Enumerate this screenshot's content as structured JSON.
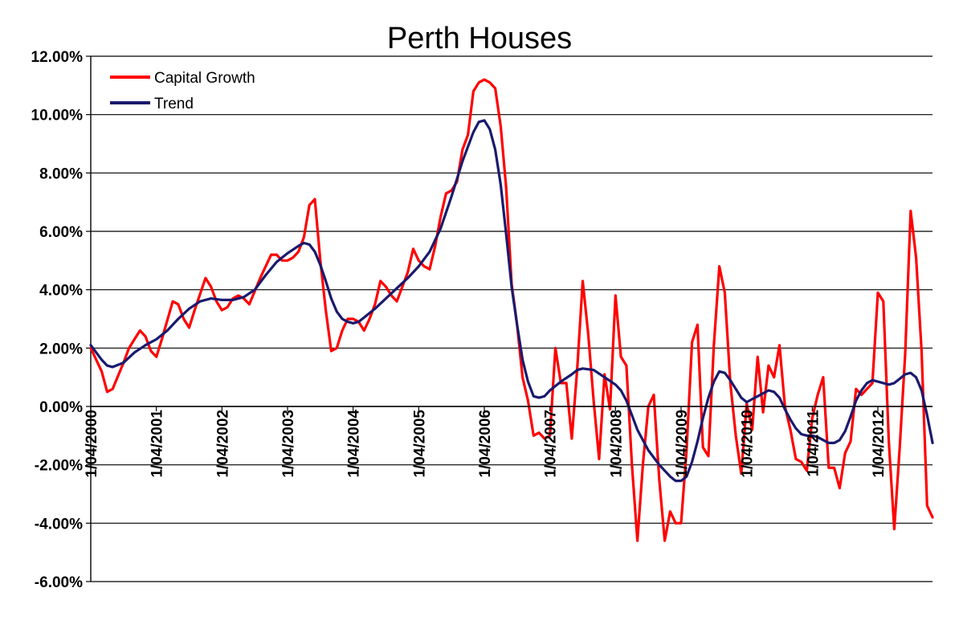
{
  "chart_data": {
    "type": "line",
    "title": "Perth Houses",
    "xlabel": "",
    "ylabel": "",
    "ylim": [
      -6,
      12
    ],
    "y_ticks": [
      "12.00%",
      "10.00%",
      "8.00%",
      "6.00%",
      "4.00%",
      "2.00%",
      "0.00%",
      "-2.00%",
      "-4.00%",
      "-6.00%"
    ],
    "y_tick_values": [
      12,
      10,
      8,
      6,
      4,
      2,
      0,
      -2,
      -4,
      -6
    ],
    "x_ticks": [
      "1/04/2000",
      "1/04/2001",
      "1/04/2002",
      "1/04/2003",
      "1/04/2004",
      "1/04/2005",
      "1/04/2006",
      "1/04/2007",
      "1/04/2008",
      "1/04/2009",
      "1/04/2010",
      "1/04/2011",
      "1/04/2012"
    ],
    "x_tick_values": [
      0,
      12,
      24,
      36,
      48,
      60,
      72,
      84,
      96,
      108,
      120,
      132,
      144
    ],
    "x_range": [
      0,
      153
    ],
    "x_unit": "months since 1/04/2000",
    "grid": "horizontal",
    "legend_position": "top-left",
    "series": [
      {
        "name": "Capital Growth",
        "color": "#ff0000",
        "points": [
          [
            0,
            2.0
          ],
          [
            2,
            1.2
          ],
          [
            3,
            0.5
          ],
          [
            4,
            0.6
          ],
          [
            6,
            1.5
          ],
          [
            7,
            2.0
          ],
          [
            8,
            2.3
          ],
          [
            9,
            2.6
          ],
          [
            10,
            2.4
          ],
          [
            11,
            1.9
          ],
          [
            12,
            1.7
          ],
          [
            13,
            2.3
          ],
          [
            15,
            3.6
          ],
          [
            16,
            3.5
          ],
          [
            17,
            3.0
          ],
          [
            18,
            2.7
          ],
          [
            19,
            3.3
          ],
          [
            21,
            4.4
          ],
          [
            22,
            4.1
          ],
          [
            23,
            3.6
          ],
          [
            24,
            3.3
          ],
          [
            25,
            3.4
          ],
          [
            26,
            3.7
          ],
          [
            27,
            3.8
          ],
          [
            28,
            3.7
          ],
          [
            29,
            3.5
          ],
          [
            31,
            4.4
          ],
          [
            33,
            5.2
          ],
          [
            34,
            5.2
          ],
          [
            35,
            5.0
          ],
          [
            36,
            5.0
          ],
          [
            37,
            5.1
          ],
          [
            38,
            5.3
          ],
          [
            39,
            5.8
          ],
          [
            40,
            6.9
          ],
          [
            41,
            7.1
          ],
          [
            42,
            5.0
          ],
          [
            43,
            3.3
          ],
          [
            44,
            1.9
          ],
          [
            45,
            2.0
          ],
          [
            46,
            2.6
          ],
          [
            47,
            3.0
          ],
          [
            48,
            3.0
          ],
          [
            49,
            2.9
          ],
          [
            50,
            2.6
          ],
          [
            51,
            3.0
          ],
          [
            52,
            3.5
          ],
          [
            53,
            4.3
          ],
          [
            54,
            4.1
          ],
          [
            55,
            3.8
          ],
          [
            56,
            3.6
          ],
          [
            57,
            4.1
          ],
          [
            58,
            4.6
          ],
          [
            59,
            5.4
          ],
          [
            60,
            5.0
          ],
          [
            61,
            4.8
          ],
          [
            62,
            4.7
          ],
          [
            63,
            5.5
          ],
          [
            64,
            6.5
          ],
          [
            65,
            7.3
          ],
          [
            66,
            7.4
          ],
          [
            67,
            7.7
          ],
          [
            68,
            8.8
          ],
          [
            69,
            9.3
          ],
          [
            70,
            10.8
          ],
          [
            71,
            11.1
          ],
          [
            72,
            11.2
          ],
          [
            73,
            11.1
          ],
          [
            74,
            10.9
          ],
          [
            75,
            9.6
          ],
          [
            76,
            7.5
          ],
          [
            77,
            4.2
          ],
          [
            78,
            2.8
          ],
          [
            79,
            1.0
          ],
          [
            80,
            0.2
          ],
          [
            81,
            -1.0
          ],
          [
            82,
            -0.9
          ],
          [
            83,
            -1.1
          ],
          [
            84,
            -1.0
          ],
          [
            85,
            2.0
          ],
          [
            86,
            0.8
          ],
          [
            87,
            0.8
          ],
          [
            88,
            -1.1
          ],
          [
            89,
            1.3
          ],
          [
            90,
            4.3
          ],
          [
            91,
            2.5
          ],
          [
            92,
            0.2
          ],
          [
            93,
            -1.8
          ],
          [
            94,
            1.1
          ],
          [
            95,
            -0.1
          ],
          [
            96,
            3.8
          ],
          [
            97,
            1.7
          ],
          [
            98,
            1.4
          ],
          [
            99,
            -2.0
          ],
          [
            100,
            -4.6
          ],
          [
            101,
            -2.0
          ],
          [
            102,
            0.0
          ],
          [
            103,
            0.4
          ],
          [
            104,
            -2.5
          ],
          [
            105,
            -4.6
          ],
          [
            106,
            -3.6
          ],
          [
            107,
            -4.0
          ],
          [
            108,
            -4.0
          ],
          [
            109,
            -1.5
          ],
          [
            110,
            2.2
          ],
          [
            111,
            2.8
          ],
          [
            112,
            -1.4
          ],
          [
            113,
            -1.7
          ],
          [
            114,
            2.1
          ],
          [
            115,
            4.8
          ],
          [
            116,
            3.9
          ],
          [
            117,
            0.8
          ],
          [
            118,
            -1.0
          ],
          [
            119,
            -2.3
          ],
          [
            120,
            0.1
          ],
          [
            121,
            -0.8
          ],
          [
            122,
            1.7
          ],
          [
            123,
            -0.2
          ],
          [
            124,
            1.4
          ],
          [
            125,
            1.0
          ],
          [
            126,
            2.1
          ],
          [
            127,
            0.0
          ],
          [
            128,
            -0.8
          ],
          [
            129,
            -1.8
          ],
          [
            130,
            -1.9
          ],
          [
            131,
            -2.2
          ],
          [
            132,
            -0.4
          ],
          [
            133,
            0.4
          ],
          [
            134,
            1.0
          ],
          [
            135,
            -2.1
          ],
          [
            136,
            -2.1
          ],
          [
            137,
            -2.8
          ],
          [
            138,
            -1.6
          ],
          [
            139,
            -1.2
          ],
          [
            140,
            0.6
          ],
          [
            141,
            0.4
          ],
          [
            142,
            0.6
          ],
          [
            143,
            0.8
          ],
          [
            144,
            3.9
          ],
          [
            145,
            3.6
          ],
          [
            146,
            -1.2
          ],
          [
            147,
            -4.2
          ],
          [
            148,
            -1.4
          ],
          [
            149,
            1.8
          ],
          [
            150,
            6.7
          ],
          [
            151,
            5.1
          ],
          [
            152,
            1.9
          ],
          [
            153,
            -3.4
          ],
          [
            154,
            -3.8
          ]
        ]
      },
      {
        "name": "Trend",
        "color": "#1a1a6e",
        "points": [
          [
            0,
            2.1
          ],
          [
            2,
            1.6
          ],
          [
            3,
            1.4
          ],
          [
            4,
            1.35
          ],
          [
            6,
            1.5
          ],
          [
            8,
            1.85
          ],
          [
            10,
            2.1
          ],
          [
            12,
            2.3
          ],
          [
            14,
            2.6
          ],
          [
            16,
            3.0
          ],
          [
            18,
            3.35
          ],
          [
            20,
            3.6
          ],
          [
            22,
            3.7
          ],
          [
            24,
            3.65
          ],
          [
            26,
            3.65
          ],
          [
            28,
            3.75
          ],
          [
            30,
            4.0
          ],
          [
            32,
            4.5
          ],
          [
            34,
            4.95
          ],
          [
            36,
            5.25
          ],
          [
            38,
            5.5
          ],
          [
            39,
            5.6
          ],
          [
            40,
            5.55
          ],
          [
            41,
            5.3
          ],
          [
            42,
            4.85
          ],
          [
            43,
            4.3
          ],
          [
            44,
            3.7
          ],
          [
            45,
            3.25
          ],
          [
            46,
            3.0
          ],
          [
            47,
            2.9
          ],
          [
            48,
            2.85
          ],
          [
            49,
            2.9
          ],
          [
            50,
            3.05
          ],
          [
            52,
            3.35
          ],
          [
            54,
            3.7
          ],
          [
            56,
            4.05
          ],
          [
            58,
            4.4
          ],
          [
            60,
            4.8
          ],
          [
            62,
            5.3
          ],
          [
            64,
            6.1
          ],
          [
            66,
            7.2
          ],
          [
            68,
            8.4
          ],
          [
            70,
            9.4
          ],
          [
            71,
            9.75
          ],
          [
            72,
            9.8
          ],
          [
            73,
            9.5
          ],
          [
            74,
            8.8
          ],
          [
            75,
            7.6
          ],
          [
            76,
            5.9
          ],
          [
            77,
            4.1
          ],
          [
            78,
            2.8
          ],
          [
            79,
            1.6
          ],
          [
            80,
            0.85
          ],
          [
            81,
            0.35
          ],
          [
            82,
            0.3
          ],
          [
            83,
            0.35
          ],
          [
            84,
            0.55
          ],
          [
            86,
            0.85
          ],
          [
            88,
            1.1
          ],
          [
            89,
            1.25
          ],
          [
            90,
            1.3
          ],
          [
            92,
            1.25
          ],
          [
            94,
            1.0
          ],
          [
            96,
            0.75
          ],
          [
            97,
            0.55
          ],
          [
            98,
            0.2
          ],
          [
            99,
            -0.3
          ],
          [
            100,
            -0.8
          ],
          [
            102,
            -1.5
          ],
          [
            104,
            -2.0
          ],
          [
            106,
            -2.4
          ],
          [
            107,
            -2.55
          ],
          [
            108,
            -2.55
          ],
          [
            109,
            -2.4
          ],
          [
            110,
            -1.9
          ],
          [
            111,
            -1.2
          ],
          [
            112,
            -0.4
          ],
          [
            113,
            0.3
          ],
          [
            114,
            0.85
          ],
          [
            115,
            1.2
          ],
          [
            116,
            1.15
          ],
          [
            117,
            0.9
          ],
          [
            118,
            0.6
          ],
          [
            119,
            0.3
          ],
          [
            120,
            0.15
          ],
          [
            121,
            0.25
          ],
          [
            122,
            0.35
          ],
          [
            124,
            0.55
          ],
          [
            125,
            0.5
          ],
          [
            126,
            0.3
          ],
          [
            127,
            -0.1
          ],
          [
            128,
            -0.45
          ],
          [
            129,
            -0.75
          ],
          [
            130,
            -0.95
          ],
          [
            131,
            -1.0
          ],
          [
            132,
            -1.0
          ],
          [
            133,
            -1.05
          ],
          [
            134,
            -1.15
          ],
          [
            135,
            -1.25
          ],
          [
            136,
            -1.25
          ],
          [
            137,
            -1.15
          ],
          [
            138,
            -0.85
          ],
          [
            139,
            -0.35
          ],
          [
            140,
            0.2
          ],
          [
            141,
            0.55
          ],
          [
            142,
            0.8
          ],
          [
            143,
            0.9
          ],
          [
            144,
            0.85
          ],
          [
            145,
            0.8
          ],
          [
            146,
            0.75
          ],
          [
            147,
            0.8
          ],
          [
            148,
            0.95
          ],
          [
            149,
            1.1
          ],
          [
            150,
            1.15
          ],
          [
            151,
            1.0
          ],
          [
            152,
            0.55
          ],
          [
            153,
            -0.3
          ],
          [
            154,
            -1.25
          ]
        ]
      }
    ]
  }
}
